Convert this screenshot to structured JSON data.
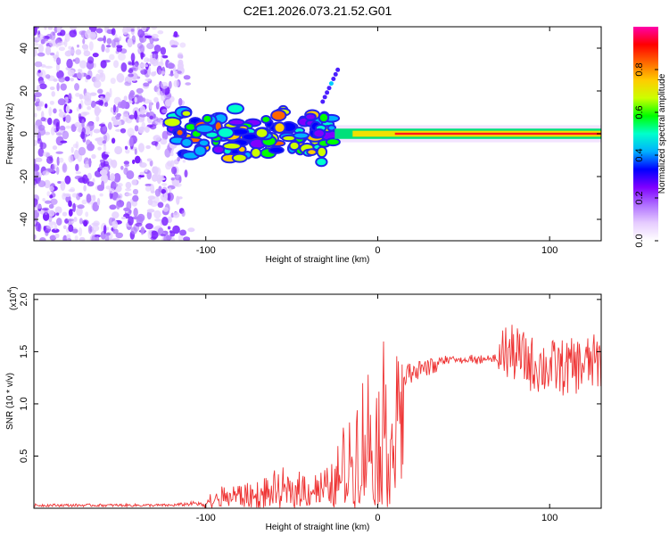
{
  "title": "C2E1.2026.073.21.52.G01",
  "chart_data": [
    {
      "type": "heatmap",
      "name": "spectrogram",
      "xlabel": "Height of straight line (km)",
      "ylabel": "Frequency (Hz)",
      "xlim": [
        -200,
        130
      ],
      "ylim": [
        -50,
        50
      ],
      "x_ticks": [
        -100,
        0,
        100
      ],
      "y_ticks": [
        -40,
        -20,
        0,
        20,
        40
      ],
      "noise_region_x": [
        -200,
        -108
      ],
      "features": [
        {
          "kind": "dominant-line",
          "x_start": -25,
          "x_end": 130,
          "frequency": 0,
          "amplitude": 1.0
        },
        {
          "kind": "blob-cluster",
          "x_start": -120,
          "x_end": -25,
          "frequency_range": [
            -14,
            12
          ],
          "amplitude_range": [
            0.2,
            0.8
          ]
        },
        {
          "kind": "streak",
          "x_start": -32,
          "x_end": -22,
          "frequency_range": [
            15,
            32
          ]
        }
      ],
      "colorbar": {
        "label": "Normalized spectral amplitude",
        "range": [
          0,
          1
        ],
        "ticks": [
          "0.0",
          "0.2",
          "0.4",
          "0.6",
          "0.8"
        ],
        "colors": [
          "#ffffff",
          "#e6ccff",
          "#b070ff",
          "#7f00ff",
          "#0000ff",
          "#00b0ff",
          "#00ffcc",
          "#00ff00",
          "#ccff00",
          "#ffcc00",
          "#ff6600",
          "#ff0000",
          "#ff00aa"
        ]
      }
    },
    {
      "type": "line",
      "name": "snr",
      "xlabel": "Height of straight line (km)",
      "ylabel": "SNR (10 * v/v)",
      "multiplier": "(x10",
      "multiplier_exp": "4",
      "multiplier_close": ")",
      "xlim": [
        -200,
        130
      ],
      "ylim": [
        0,
        2.05
      ],
      "x_ticks": [
        -100,
        0,
        100
      ],
      "y_ticks": [
        0.5,
        1.0,
        1.5,
        2.0
      ],
      "y_tick_labels": [
        "0.5",
        "1.0",
        "1.5",
        "2.0"
      ],
      "color": "#ee3333",
      "envelope": {
        "x": [
          -200,
          -120,
          -105,
          -95,
          -85,
          -75,
          -65,
          -55,
          -45,
          -35,
          -28,
          -22,
          -15,
          -8,
          0,
          10,
          20,
          30,
          40,
          50,
          60,
          70,
          80,
          90,
          100,
          110,
          120,
          130
        ],
        "y": [
          0.03,
          0.03,
          0.05,
          0.12,
          0.2,
          0.18,
          0.22,
          0.25,
          0.32,
          0.3,
          0.28,
          0.5,
          0.75,
          0.95,
          1.1,
          1.3,
          1.42,
          1.47,
          1.47,
          1.47,
          1.48,
          1.48,
          1.45,
          1.35,
          1.32,
          1.32,
          1.35,
          1.38
        ]
      }
    }
  ]
}
